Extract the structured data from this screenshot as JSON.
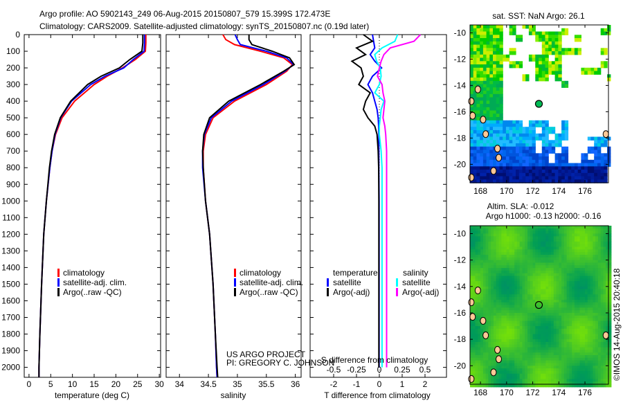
{
  "title": {
    "line1": "Argo profile: AO 5902143_249 06-Aug-2015 20150807_579 15.399S 172.473E",
    "line2": "Climatology: CARS2009. Satellite-adjusted climatology: synTS_20150807.nc (0.19d later)"
  },
  "side_stamp": "©IMOS 14-Aug-2015 20:40:18",
  "project_note": {
    "line1": "US ARGO PROJECT",
    "line2": "PI: GREGORY C. JOHNSON"
  },
  "colors": {
    "climatology": "#ff0000",
    "satellite": "#0000ff",
    "argo": "#000000",
    "sal_satellite": "#00ffff",
    "sal_argo": "#ff00ff"
  },
  "chart_data": [
    {
      "type": "line",
      "id": "temperature",
      "xlabel": "temperature (deg C)",
      "ylabel": "",
      "xlim": [
        -1.1,
        30.3
      ],
      "ylim": [
        2060,
        0
      ],
      "xticks": [
        0,
        5,
        10,
        15,
        20,
        25,
        30
      ],
      "yticks": [
        0,
        100,
        200,
        300,
        400,
        500,
        600,
        700,
        800,
        900,
        1000,
        1100,
        1200,
        1300,
        1400,
        1500,
        1600,
        1700,
        1800,
        1900,
        2000
      ],
      "legend": [
        "climatology",
        "satellite-adj. clim.",
        "Argo(..raw -QC)"
      ],
      "legend_placement": "lower-center",
      "depth": [
        0,
        50,
        100,
        150,
        200,
        250,
        300,
        400,
        500,
        600,
        700,
        800,
        1000,
        1200,
        1500,
        1800,
        2000,
        2060
      ],
      "series": [
        {
          "name": "climatology",
          "values": [
            26.9,
            26.9,
            26.8,
            24.5,
            21.5,
            18.0,
            15.0,
            10.5,
            7.6,
            6.1,
            5.3,
            4.8,
            4.0,
            3.4,
            2.9,
            2.5,
            2.3,
            2.3
          ]
        },
        {
          "name": "satellite-adj. clim.",
          "values": [
            26.6,
            26.6,
            26.5,
            24.0,
            21.8,
            17.5,
            14.2,
            9.8,
            7.3,
            6.0,
            5.3,
            4.8,
            4.0,
            3.4,
            2.9,
            2.5,
            2.3,
            2.3
          ]
        },
        {
          "name": "Argo(..raw -QC)",
          "values": [
            26.2,
            26.2,
            26.0,
            23.2,
            20.8,
            16.6,
            13.5,
            9.6,
            7.2,
            5.9,
            5.2,
            4.7,
            4.0,
            3.4,
            2.9,
            2.5,
            2.3,
            2.3
          ]
        }
      ]
    },
    {
      "type": "line",
      "id": "salinity",
      "xlabel": "salinity",
      "xlim": [
        33.77,
        36.1
      ],
      "ylim": [
        2060,
        0
      ],
      "xticks": [
        34,
        34.5,
        35,
        35.5,
        36
      ],
      "legend": [
        "climatology",
        "satellite-adj. clim.",
        "Argo(..raw -QC)"
      ],
      "legend_placement": "lower-center",
      "depth": [
        0,
        30,
        60,
        100,
        140,
        180,
        220,
        300,
        400,
        500,
        600,
        700,
        800,
        1000,
        1200,
        1500,
        1800,
        2000,
        2060
      ],
      "series": [
        {
          "name": "climatology",
          "values": [
            34.75,
            34.8,
            34.95,
            35.4,
            35.8,
            35.95,
            35.85,
            35.5,
            34.95,
            34.58,
            34.45,
            34.41,
            34.41,
            34.45,
            34.52,
            34.58,
            34.62,
            34.64,
            34.65
          ]
        },
        {
          "name": "satellite-adj. clim.",
          "values": [
            34.96,
            35.0,
            35.05,
            35.5,
            35.85,
            35.97,
            35.82,
            35.45,
            34.9,
            34.55,
            34.43,
            34.4,
            34.4,
            34.45,
            34.52,
            34.58,
            34.62,
            34.64,
            34.65
          ]
        },
        {
          "name": "Argo(..raw -QC)",
          "values": [
            35.2,
            35.2,
            35.25,
            35.6,
            35.9,
            35.98,
            35.8,
            35.4,
            34.85,
            34.52,
            34.42,
            34.4,
            34.41,
            34.45,
            34.52,
            34.58,
            34.62,
            34.65,
            34.66
          ]
        }
      ]
    },
    {
      "type": "line",
      "id": "differences",
      "xlabel": "T difference from climatology",
      "xlabel2": "S difference from climatology",
      "xlim": [
        -3.03,
        2.94
      ],
      "ylim": [
        2060,
        0
      ],
      "xticks": [
        -2,
        -1,
        0,
        1,
        2
      ],
      "xticks2": [
        "-0.5",
        "-0.25",
        "0",
        "0.25",
        "0.5"
      ],
      "legend_headers": [
        "temperature",
        "salinity"
      ],
      "legend": [
        "satellite",
        "Argo(-adj)",
        "satellite",
        "Argo(-adj)"
      ],
      "legend_placement": "center",
      "depth": [
        0,
        40,
        80,
        120,
        160,
        200,
        250,
        300,
        350,
        400,
        450,
        500,
        550,
        600,
        700,
        800,
        1000,
        1500,
        2000
      ],
      "series": [
        {
          "name": "T satellite",
          "values": [
            -0.3,
            -0.25,
            -0.2,
            -0.4,
            -0.2,
            0.1,
            -0.3,
            -0.5,
            -0.3,
            -0.2,
            -0.1,
            -0.05,
            -0.03,
            -0.02,
            -0.02,
            -0.02,
            -0.01,
            -0.01,
            -0.01
          ]
        },
        {
          "name": "T Argo(-adj)",
          "values": [
            -0.7,
            -0.3,
            -1.0,
            -0.6,
            -1.2,
            -0.8,
            -0.7,
            -0.9,
            -0.4,
            -0.6,
            -0.7,
            -0.5,
            -0.2,
            -0.1,
            -0.05,
            -0.03,
            -0.02,
            -0.02,
            -0.02
          ]
        },
        {
          "name": "S satellite",
          "values": [
            0.2,
            0.17,
            0.03,
            -0.05,
            -0.03,
            0.01,
            0.02,
            0.0,
            -0.05,
            0.05,
            0.02,
            0.01,
            0.0,
            0.0,
            0.02,
            0.03,
            0.03,
            0.03,
            0.03
          ]
        },
        {
          "name": "S Argo(-adj)",
          "values": [
            0.45,
            0.38,
            0.12,
            0.05,
            0.02,
            0.0,
            -0.02,
            0.03,
            0.04,
            0.06,
            0.05,
            0.04,
            0.06,
            0.07,
            0.08,
            0.08,
            0.08,
            0.08,
            0.08
          ]
        }
      ]
    },
    {
      "type": "heatmap",
      "id": "sst-map",
      "title": "sat. SST: NaN Argo: 26.1",
      "xticks": [
        168,
        170,
        172,
        174,
        176
      ],
      "yticks": [
        -10,
        -12,
        -14,
        -16,
        -18,
        -20
      ],
      "xlim": [
        167.2,
        177.8
      ],
      "ylim": [
        -21.4,
        -9.4
      ],
      "argo_position": {
        "lon": 172.473,
        "lat": -15.399
      }
    },
    {
      "type": "heatmap",
      "id": "sla-map",
      "title": "Altim. SLA: -0.012",
      "subtitle": "Argo h1000: -0.13 h2000: -0.16",
      "xticks": [
        168,
        170,
        172,
        174,
        176
      ],
      "yticks": [
        -10,
        -12,
        -14,
        -16,
        -18,
        -20
      ],
      "xlim": [
        167.2,
        177.8
      ],
      "ylim": [
        -21.4,
        -9.4
      ],
      "argo_position": {
        "lon": 172.473,
        "lat": -15.399
      }
    }
  ]
}
